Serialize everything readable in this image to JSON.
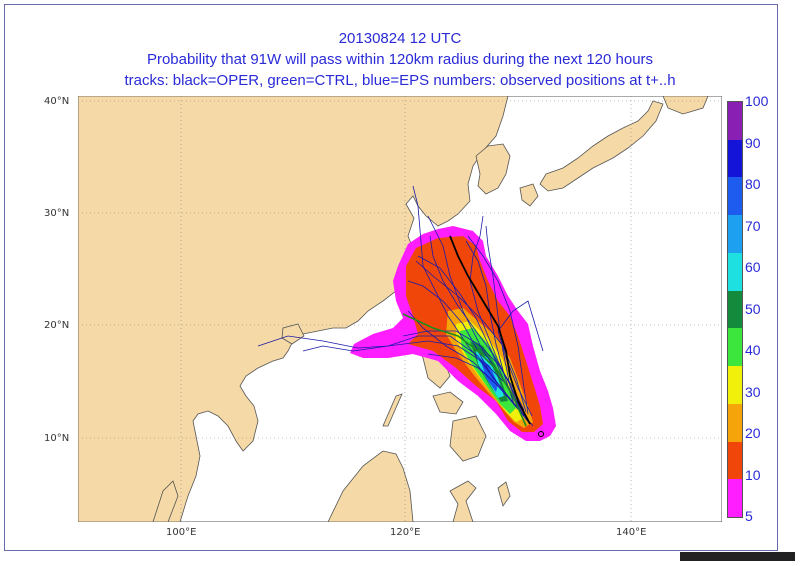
{
  "header": {
    "date_line": "20130824 12 UTC",
    "title_line": "Probability that 91W will pass within 120km radius during the next 120 hours",
    "legend_line": "tracks: black=OPER, green=CTRL, blue=EPS numbers: observed positions at t+..h"
  },
  "axes": {
    "lat_labels": [
      "40°N",
      "30°N",
      "20°N",
      "10°N"
    ],
    "lon_labels": [
      "100°E",
      "120°E",
      "140°E"
    ]
  },
  "colorbar": {
    "ticks": [
      "100",
      "90",
      "80",
      "70",
      "60",
      "50",
      "40",
      "30",
      "20",
      "10",
      "5"
    ],
    "colors": [
      "#8a1fb4",
      "#1414d8",
      "#1e5cf0",
      "#1ea0f0",
      "#1ee0e0",
      "#138a3c",
      "#3ce63c",
      "#f0f00a",
      "#f5a50a",
      "#f0460a",
      "#ff1eff"
    ]
  },
  "map_colors": {
    "land": "#f5d9a6",
    "sea": "#ffffff",
    "oper_track": "#000000",
    "ctrl_track": "#1e8c1e",
    "eps_track": "#1a1aaa"
  }
}
